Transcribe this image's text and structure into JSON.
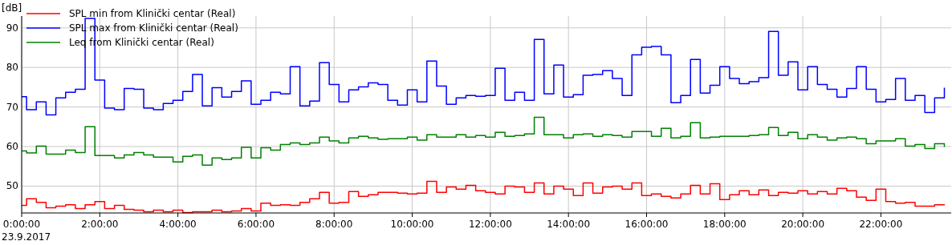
{
  "chart_data": {
    "type": "step",
    "ylabel": "[dB]",
    "annotations": [
      "23.9.2017"
    ],
    "x": [
      0,
      0.125,
      0.375,
      0.625,
      0.875,
      1.125,
      1.375,
      1.625,
      1.875,
      2.125,
      2.375,
      2.625,
      2.875,
      3.125,
      3.375,
      3.625,
      3.875,
      4.125,
      4.375,
      4.625,
      4.875,
      5.125,
      5.375,
      5.625,
      5.875,
      6.125,
      6.375,
      6.625,
      6.875,
      7.125,
      7.375,
      7.625,
      7.875,
      8.125,
      8.375,
      8.625,
      8.875,
      9.125,
      9.375,
      9.625,
      9.875,
      10.125,
      10.375,
      10.625,
      10.875,
      11.125,
      11.375,
      11.625,
      11.875,
      12.125,
      12.375,
      12.625,
      12.875,
      13.125,
      13.375,
      13.625,
      13.875,
      14.125,
      14.375,
      14.625,
      14.875,
      15.125,
      15.375,
      15.625,
      15.875,
      16.125,
      16.375,
      16.625,
      16.875,
      17.125,
      17.375,
      17.625,
      17.875,
      18.125,
      18.375,
      18.625,
      18.875,
      19.125,
      19.375,
      19.625,
      19.875,
      20.125,
      20.375,
      20.625,
      20.875,
      21.125,
      21.375,
      21.625,
      21.875,
      22.125,
      22.375,
      22.625,
      22.875,
      23.125,
      23.375,
      23.625
    ],
    "series": [
      {
        "name": "SPL min from Klinički centar (Real)",
        "color": "#ff0000",
        "values": [
          45.1,
          46.8,
          45.9,
          44.5,
          44.9,
          45.3,
          44.3,
          45.3,
          46.1,
          44.3,
          45.1,
          44.1,
          43.9,
          43.5,
          43.9,
          43.5,
          43.9,
          43.3,
          43.5,
          43.5,
          43.9,
          43.5,
          43.7,
          44.3,
          43.7,
          45.7,
          45.1,
          45.3,
          45.1,
          45.9,
          46.8,
          48.4,
          45.7,
          45.9,
          48.6,
          47.4,
          47.8,
          48.4,
          48.4,
          48.2,
          48.0,
          48.2,
          51.2,
          48.4,
          49.8,
          49.2,
          50.2,
          48.8,
          48.4,
          48.0,
          50.0,
          49.8,
          48.4,
          50.8,
          48.0,
          50.0,
          49.2,
          47.6,
          50.8,
          48.2,
          49.8,
          50.0,
          49.2,
          50.8,
          47.6,
          48.0,
          47.4,
          47.0,
          48.0,
          50.2,
          48.0,
          50.6,
          46.6,
          47.8,
          48.8,
          47.8,
          49.0,
          47.6,
          48.4,
          48.2,
          48.8,
          48.0,
          48.6,
          48.0,
          49.4,
          48.8,
          47.2,
          46.4,
          49.2,
          46.1,
          45.7,
          45.9,
          44.9,
          44.9,
          45.3,
          45.1
        ]
      },
      {
        "name": "SPL max from Klinički centar (Real)",
        "color": "#0000ff",
        "values": [
          72.6,
          69.3,
          71.3,
          68.0,
          72.3,
          73.7,
          74.5,
          92.4,
          76.8,
          69.7,
          69.3,
          74.7,
          74.5,
          69.7,
          69.3,
          70.9,
          71.7,
          73.9,
          78.2,
          70.3,
          74.9,
          72.5,
          73.9,
          76.6,
          70.7,
          71.7,
          73.7,
          73.3,
          80.2,
          70.3,
          71.5,
          81.2,
          75.7,
          71.3,
          74.3,
          75.1,
          76.1,
          75.7,
          71.7,
          70.5,
          74.3,
          71.3,
          81.6,
          75.3,
          70.7,
          72.3,
          72.9,
          72.7,
          72.9,
          79.8,
          71.7,
          73.7,
          71.7,
          87.1,
          73.3,
          80.6,
          72.5,
          73.1,
          78.0,
          78.2,
          79.2,
          77.2,
          72.9,
          83.2,
          85.1,
          85.3,
          83.2,
          71.1,
          72.9,
          82.0,
          73.5,
          75.5,
          80.2,
          77.2,
          75.9,
          76.4,
          77.4,
          89.1,
          78.0,
          81.4,
          74.3,
          80.2,
          75.7,
          74.5,
          72.5,
          74.7,
          80.2,
          74.5,
          71.3,
          71.9,
          77.2,
          71.7,
          72.9,
          68.6,
          72.3,
          74.9
        ]
      },
      {
        "name": "Leq from Klinički centar (Real)",
        "color": "#008000",
        "values": [
          58.9,
          58.4,
          60.1,
          58.1,
          58.1,
          59.1,
          58.5,
          65.0,
          57.7,
          57.7,
          57.1,
          57.9,
          58.5,
          57.9,
          57.3,
          57.3,
          56.1,
          57.5,
          57.9,
          55.3,
          57.1,
          56.7,
          57.1,
          59.8,
          57.1,
          59.7,
          59.1,
          60.5,
          60.9,
          60.5,
          60.9,
          62.4,
          61.4,
          60.9,
          62.2,
          62.6,
          62.2,
          61.8,
          62.0,
          62.0,
          62.4,
          61.6,
          63.0,
          62.4,
          62.4,
          63.0,
          62.4,
          62.8,
          62.4,
          63.6,
          62.6,
          62.8,
          63.2,
          67.4,
          63.0,
          63.0,
          62.2,
          63.0,
          63.2,
          62.6,
          63.0,
          62.8,
          62.4,
          63.8,
          63.8,
          62.6,
          64.6,
          62.2,
          62.6,
          66.0,
          62.2,
          62.4,
          62.6,
          62.6,
          62.6,
          62.8,
          63.0,
          64.8,
          62.8,
          63.6,
          62.0,
          63.0,
          62.4,
          61.6,
          62.2,
          62.4,
          62.0,
          60.7,
          61.4,
          61.4,
          62.0,
          60.1,
          60.5,
          59.5,
          60.7,
          59.9
        ]
      }
    ],
    "xlim": [
      0,
      23.8
    ],
    "xticks": [
      {
        "value": 0,
        "label": "0:00:00"
      },
      {
        "value": 2,
        "label": "2:00:00"
      },
      {
        "value": 4,
        "label": "4:00:00"
      },
      {
        "value": 6,
        "label": "6:00:00"
      },
      {
        "value": 8,
        "label": "8:00:00"
      },
      {
        "value": 10,
        "label": "10:00:00"
      },
      {
        "value": 12,
        "label": "12:00:00"
      },
      {
        "value": 14,
        "label": "14:00:00"
      },
      {
        "value": 16,
        "label": "16:00:00"
      },
      {
        "value": 18,
        "label": "18:00:00"
      },
      {
        "value": 20,
        "label": "20:00:00"
      },
      {
        "value": 22,
        "label": "22:00:00"
      }
    ],
    "ylim": [
      43.2,
      93
    ],
    "yticks": [
      50,
      60,
      70,
      80,
      90
    ],
    "grid": true,
    "legend": "top left"
  }
}
